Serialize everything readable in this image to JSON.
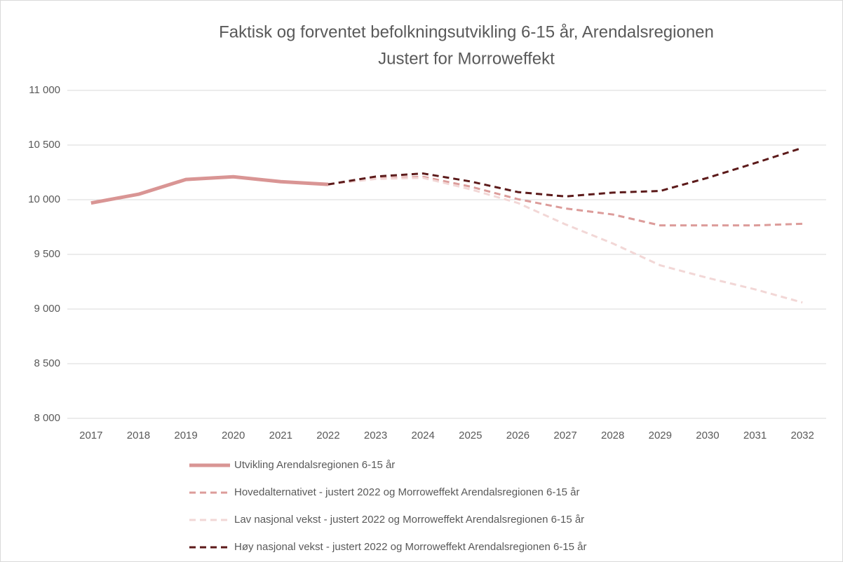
{
  "chart_data": {
    "type": "line",
    "title": "Faktisk og forventet befolkningsutvikling 6-15 år, Arendalsregionen",
    "subtitle": "Justert for Morroweffekt",
    "categories": [
      "2017",
      "2018",
      "2019",
      "2020",
      "2021",
      "2022",
      "2023",
      "2024",
      "2025",
      "2026",
      "2027",
      "2028",
      "2029",
      "2030",
      "2031",
      "2032"
    ],
    "ylim": [
      8000,
      11000
    ],
    "yticks": [
      {
        "value": 8000,
        "label": "8 000"
      },
      {
        "value": 8500,
        "label": "8 500"
      },
      {
        "value": 9000,
        "label": "9 000"
      },
      {
        "value": 9500,
        "label": "9 500"
      },
      {
        "value": 10000,
        "label": "10 000"
      },
      {
        "value": 10500,
        "label": "10 500"
      },
      {
        "value": 11000,
        "label": "11 000"
      }
    ],
    "grid": true,
    "legend": "bottom",
    "series": [
      {
        "name": "Utvikling Arendalsregionen 6-15 år",
        "color": "#d99594",
        "style": "solid",
        "values": [
          9970,
          10050,
          10185,
          10210,
          10165,
          10140,
          null,
          null,
          null,
          null,
          null,
          null,
          null,
          null,
          null,
          null
        ]
      },
      {
        "name": "Hovedalternativet - justert 2022 og Morroweffekt Arendalsregionen 6-15 år",
        "color": "#dc9c9a",
        "style": "dashed",
        "values": [
          null,
          null,
          null,
          null,
          null,
          10140,
          10195,
          10210,
          10120,
          10005,
          9920,
          9865,
          9765,
          9765,
          9765,
          9780
        ]
      },
      {
        "name": "Lav nasjonal vekst - justert 2022 og Morroweffekt Arendalsregionen 6-15 år",
        "color": "#f2d7d6",
        "style": "dashed",
        "values": [
          null,
          null,
          null,
          null,
          null,
          10140,
          10190,
          10200,
          10095,
          9970,
          9775,
          9600,
          9400,
          9285,
          9180,
          9060
        ]
      },
      {
        "name": "Høy nasjonal vekst - justert 2022 og Morroweffekt Arendalsregionen 6-15 år",
        "color": "#5c1a1a",
        "style": "dashed",
        "values": [
          null,
          null,
          null,
          null,
          null,
          10140,
          10212,
          10240,
          10167,
          10070,
          10030,
          10065,
          10080,
          10200,
          10335,
          10475
        ]
      }
    ]
  }
}
